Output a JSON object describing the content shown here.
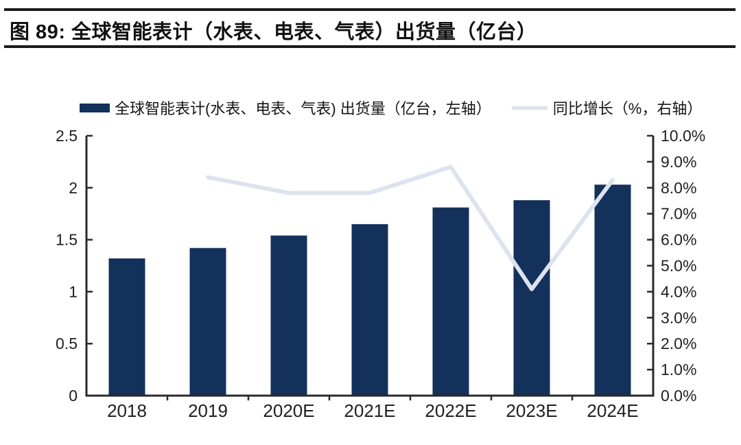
{
  "header": {
    "title": "图 89:  全球智能表计（水表、电表、气表）出货量（亿台）"
  },
  "legend": {
    "bar_label": "全球智能表计(水表、电表、气表) 出货量（亿台，左轴）",
    "line_label": "同比增长（%，右轴）"
  },
  "colors": {
    "bar": "#13315a",
    "line": "#dde3ee",
    "axis": "#2a2a2a",
    "tick_text": "#1f1f1f",
    "rule": "#1b1b1b"
  },
  "chart_data": {
    "type": "bar",
    "title": "图 89: 全球智能表计（水表、电表、气表）出货量（亿台）",
    "categories": [
      "2018",
      "2019",
      "2020E",
      "2021E",
      "2022E",
      "2023E",
      "2024E"
    ],
    "series": [
      {
        "name": "全球智能表计(水表、电表、气表) 出货量（亿台，左轴）",
        "type": "bar",
        "axis": "left",
        "values": [
          1.32,
          1.42,
          1.54,
          1.65,
          1.81,
          1.88,
          2.03
        ]
      },
      {
        "name": "同比增长（%，右轴）",
        "type": "line",
        "axis": "right",
        "values": [
          null,
          8.4,
          7.8,
          7.8,
          8.8,
          4.1,
          8.3
        ]
      }
    ],
    "left_axis": {
      "min": 0,
      "max": 2.5,
      "tick_labels": [
        "0",
        "0.5",
        "1",
        "1.5",
        "2",
        "2.5"
      ]
    },
    "right_axis": {
      "min": 0,
      "max": 10,
      "tick_labels": [
        "0.0%",
        "1.0%",
        "2.0%",
        "3.0%",
        "4.0%",
        "5.0%",
        "6.0%",
        "7.0%",
        "8.0%",
        "9.0%",
        "10.0%"
      ]
    },
    "grid": false,
    "legend_position": "top"
  }
}
